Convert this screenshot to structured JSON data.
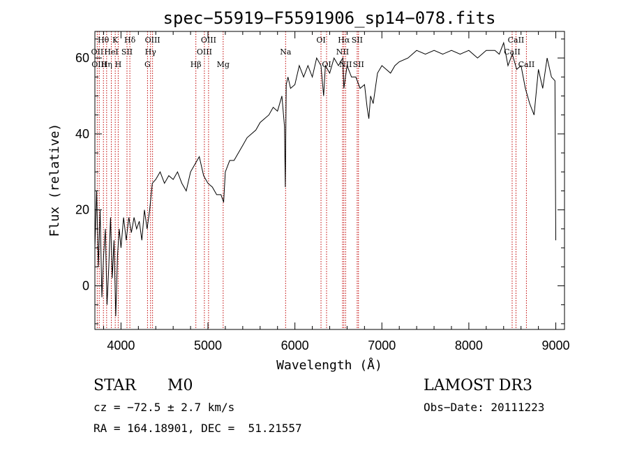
{
  "chart_data": {
    "type": "line",
    "title": "spec−55919−F5591906_sp14−078.fits",
    "xlabel": "Wavelength (Å)",
    "ylabel": "Flux (relative)",
    "xlim": [
      3700,
      9100
    ],
    "ylim": [
      -11.5,
      67
    ],
    "x_ticks": [
      4000,
      5000,
      6000,
      7000,
      8000,
      9000
    ],
    "y_ticks": [
      0,
      20,
      40,
      60
    ],
    "series": [
      {
        "name": "flux",
        "x": [
          3700,
          3720,
          3740,
          3760,
          3780,
          3800,
          3820,
          3840,
          3860,
          3880,
          3900,
          3920,
          3940,
          3960,
          3980,
          4000,
          4030,
          4060,
          4090,
          4120,
          4150,
          4180,
          4210,
          4240,
          4270,
          4300,
          4330,
          4360,
          4400,
          4450,
          4500,
          4550,
          4600,
          4650,
          4700,
          4750,
          4800,
          4850,
          4900,
          4950,
          5000,
          5050,
          5100,
          5150,
          5180,
          5200,
          5250,
          5300,
          5350,
          5400,
          5450,
          5500,
          5550,
          5600,
          5650,
          5700,
          5750,
          5800,
          5850,
          5880,
          5890,
          5900,
          5920,
          5950,
          6000,
          6050,
          6100,
          6150,
          6200,
          6250,
          6300,
          6330,
          6350,
          6400,
          6450,
          6500,
          6550,
          6563,
          6600,
          6650,
          6700,
          6750,
          6800,
          6830,
          6850,
          6870,
          6900,
          6950,
          7000,
          7050,
          7100,
          7150,
          7200,
          7300,
          7400,
          7500,
          7600,
          7700,
          7800,
          7900,
          8000,
          8100,
          8200,
          8300,
          8350,
          8400,
          8450,
          8500,
          8550,
          8600,
          8650,
          8700,
          8750,
          8800,
          8850,
          8900,
          8950,
          8990,
          9000
        ],
        "y": [
          10,
          25,
          5,
          20,
          -3,
          8,
          15,
          -5,
          5,
          18,
          2,
          12,
          -8,
          8,
          15,
          10,
          18,
          12,
          18,
          14,
          18,
          15,
          17,
          12,
          20,
          15,
          20,
          27,
          28,
          30,
          27,
          29,
          28,
          30,
          27,
          25,
          30,
          32,
          34,
          29,
          27,
          26,
          24,
          24,
          22,
          30,
          33,
          33,
          35,
          37,
          39,
          40,
          41,
          43,
          44,
          45,
          47,
          46,
          50,
          42,
          26,
          53,
          55,
          52,
          53,
          58,
          55,
          58,
          55,
          60,
          58,
          50,
          58,
          56,
          60,
          58,
          60,
          52,
          58,
          55,
          55,
          52,
          53,
          47,
          44,
          50,
          48,
          56,
          58,
          57,
          56,
          58,
          59,
          60,
          62,
          61,
          62,
          61,
          62,
          61,
          62,
          60,
          62,
          62,
          61,
          64,
          58,
          61,
          57,
          58,
          52,
          48,
          45,
          57,
          52,
          60,
          55,
          54,
          12
        ]
      }
    ],
    "emission_lines": [
      {
        "label": "Hθ",
        "wl": 3798,
        "row": 0
      },
      {
        "label": "OII",
        "wl": 3727,
        "row": 1
      },
      {
        "label": "OIII",
        "wl": 3750,
        "row": 2
      },
      {
        "label": "K",
        "wl": 3934,
        "row": 0
      },
      {
        "label": "HeI",
        "wl": 3889,
        "row": 1
      },
      {
        "label": "Hη",
        "wl": 3835,
        "row": 2
      },
      {
        "label": "Hδ",
        "wl": 4102,
        "row": 0
      },
      {
        "label": "SII",
        "wl": 4069,
        "row": 1
      },
      {
        "label": "H",
        "wl": 3968,
        "row": 2
      },
      {
        "label": "OIII",
        "wl": 4363,
        "row": 0
      },
      {
        "label": "Hγ",
        "wl": 4340,
        "row": 1
      },
      {
        "label": "G",
        "wl": 4305,
        "row": 2
      },
      {
        "label": "OIII",
        "wl": 5007,
        "row": 0
      },
      {
        "label": "OIII",
        "wl": 4959,
        "row": 1
      },
      {
        "label": "Hβ",
        "wl": 4861,
        "row": 2
      },
      {
        "label": "Mg",
        "wl": 5175,
        "row": 2
      },
      {
        "label": "Na",
        "wl": 5893,
        "row": 1
      },
      {
        "label": "OI",
        "wl": 6300,
        "row": 0
      },
      {
        "label": "OI",
        "wl": 6364,
        "row": 2
      },
      {
        "label": "Hα",
        "wl": 6563,
        "row": 0
      },
      {
        "label": "SII",
        "wl": 6716,
        "row": 0
      },
      {
        "label": "NII",
        "wl": 6548,
        "row": 1
      },
      {
        "label": "NII",
        "wl": 6583,
        "row": 2
      },
      {
        "label": "SII",
        "wl": 6731,
        "row": 2
      },
      {
        "label": "CaII",
        "wl": 8542,
        "row": 0
      },
      {
        "label": "CaII",
        "wl": 8498,
        "row": 1
      },
      {
        "label": "CaII",
        "wl": 8662,
        "row": 2
      }
    ]
  },
  "info": {
    "class": "STAR",
    "subclass": "M0",
    "survey": "LAMOST DR3",
    "cz": "cz = −72.5 ± 2.7 km/s",
    "obs_date": "Obs−Date: 20111223",
    "coords": "RA = 164.18901, DEC =  51.21557"
  }
}
